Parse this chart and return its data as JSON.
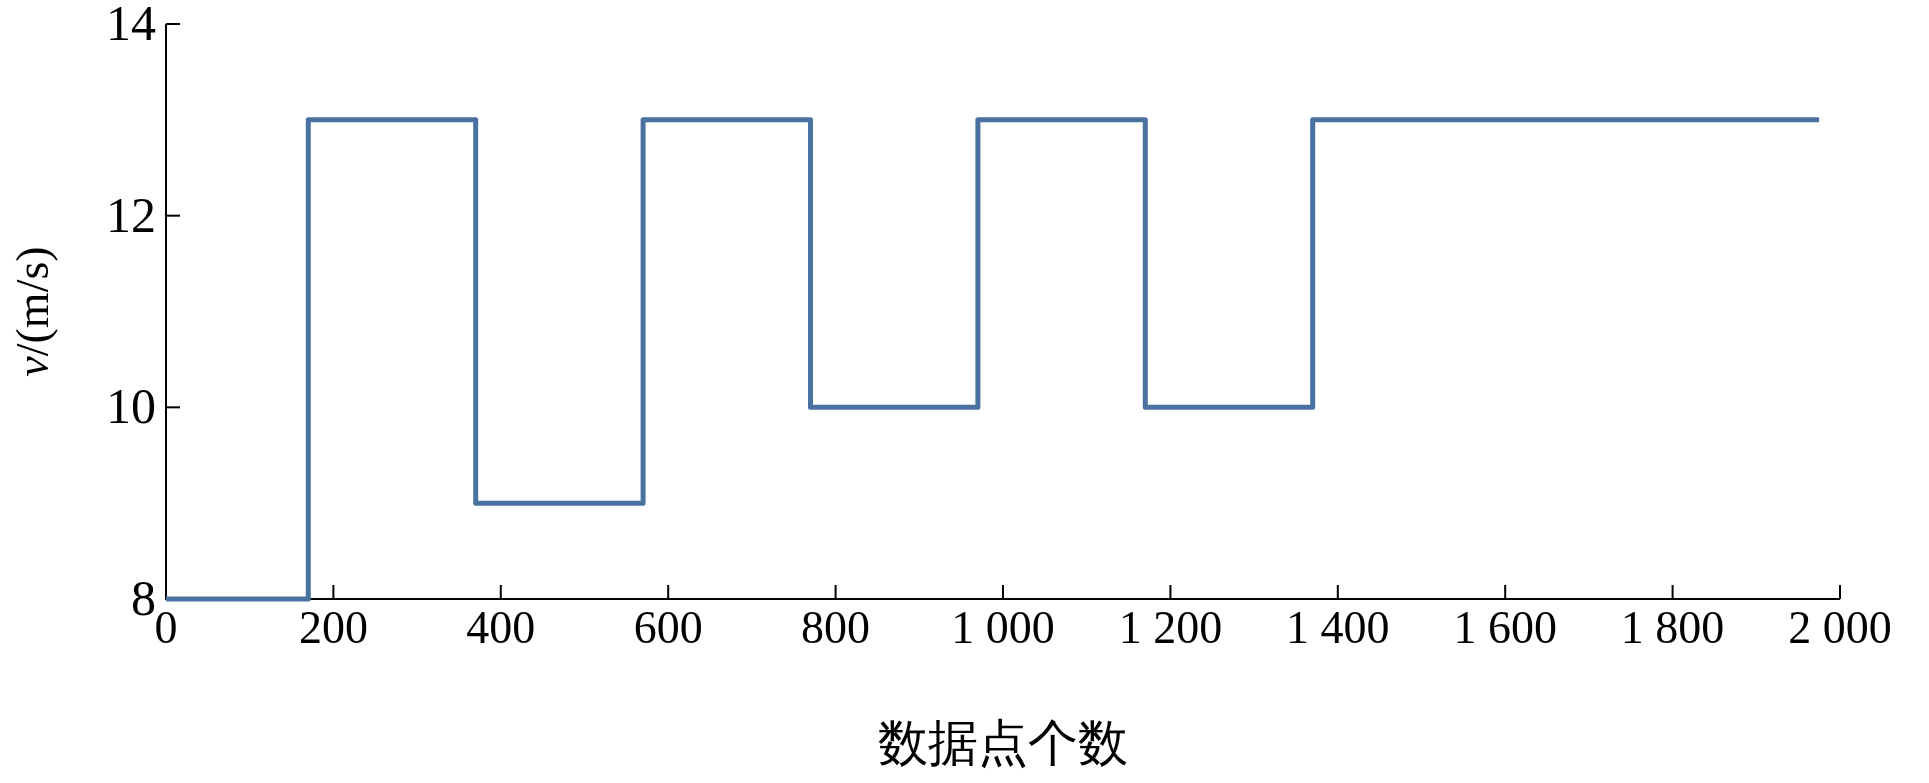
{
  "chart_data": {
    "type": "step",
    "xlabel": "数据点个数",
    "ylabel": "*v*/(m/s)",
    "x": [
      0,
      170,
      370,
      570,
      770,
      970,
      1170,
      1370,
      1975
    ],
    "values": [
      8,
      13,
      9,
      13,
      10,
      13,
      10,
      13,
      13
    ],
    "color": "#4a72a0",
    "xlim": [
      0,
      2000
    ],
    "ylim": [
      8,
      14
    ],
    "xticks": [
      0,
      200,
      400,
      600,
      800,
      {
        "value": 1000,
        "label": "1 000"
      },
      {
        "value": 1200,
        "label": "1 200"
      },
      {
        "value": 1400,
        "label": "1 400"
      },
      {
        "value": 1600,
        "label": "1 600"
      },
      {
        "value": 1800,
        "label": "1 800"
      },
      {
        "value": 2000,
        "label": "2 000"
      }
    ],
    "yticks": [
      8,
      10,
      12,
      14
    ],
    "grid": false
  }
}
